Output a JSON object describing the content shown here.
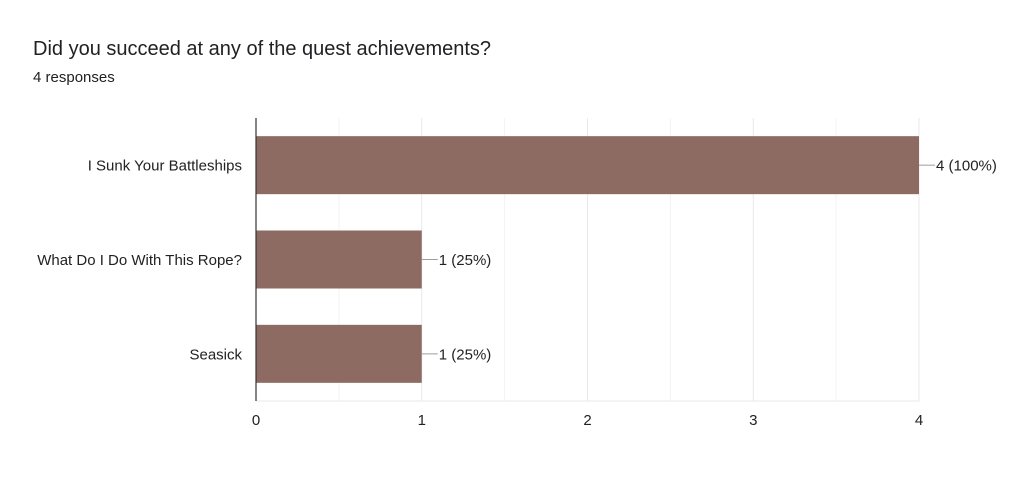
{
  "header": {
    "title": "Did you succeed at any of the quest achievements?",
    "responses": "4 responses"
  },
  "colors": {
    "bar": "#8d6a62",
    "grid": "#e9e9e9",
    "axis": "#333333",
    "leader": "#9e9e9e"
  },
  "chart_data": {
    "type": "bar",
    "orientation": "horizontal",
    "title": "Did you succeed at any of the quest achievements?",
    "subtitle": "4 responses",
    "categories": [
      "I Sunk Your Battleships",
      "What Do I Do With This Rope?",
      "Seasick"
    ],
    "values": [
      4,
      1,
      1
    ],
    "data_labels": [
      "4 (100%)",
      "1 (25%)",
      "1 (25%)"
    ],
    "xlim": [
      0,
      4
    ],
    "xticks": [
      0,
      1,
      2,
      3,
      4
    ],
    "grid": true,
    "legend": "none"
  }
}
